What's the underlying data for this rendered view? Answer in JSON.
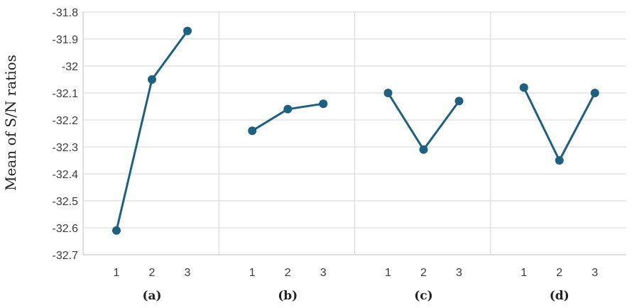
{
  "chart_data": {
    "type": "line",
    "ylabel": "Mean of S/N ratios",
    "ylim": [
      -32.7,
      -31.8
    ],
    "yticks": [
      "-31.8",
      "-31.9",
      "-32",
      "-32.1",
      "-32.2",
      "-32.3",
      "-32.4",
      "-32.5",
      "-32.6",
      "-32.7"
    ],
    "grid": true,
    "levels": [
      "1",
      "2",
      "3"
    ],
    "panels": [
      {
        "label": "(a)",
        "values": [
          -32.61,
          -32.05,
          -31.87
        ]
      },
      {
        "label": "(b)",
        "values": [
          -32.24,
          -32.16,
          -32.14
        ]
      },
      {
        "label": "(c)",
        "values": [
          -32.1,
          -32.31,
          -32.13
        ]
      },
      {
        "label": "(d)",
        "values": [
          -32.08,
          -32.35,
          -32.1
        ]
      }
    ],
    "colors": {
      "series": "#1f5f7f",
      "grid": "#d6d6d6",
      "axis": "#bfbfbf"
    }
  }
}
